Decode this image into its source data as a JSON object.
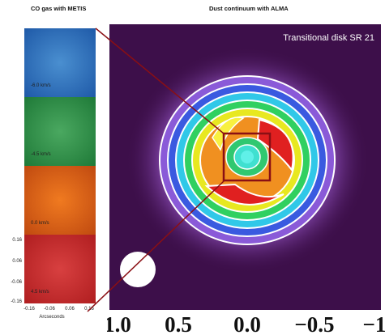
{
  "left_title": "CO gas with METIS",
  "right_title": "Dust continuum with ALMA",
  "image_label": "Transitional disk SR 21",
  "panels": [
    "-6.0 km/s",
    "-4.5 km/s",
    "0.0 km/s",
    "4.5 km/s"
  ],
  "panel_axis": {
    "y_ticks": [
      "0.16",
      "0.06",
      "-0.06",
      "-0.16"
    ],
    "x_ticks": [
      "-0.16",
      "-0.06",
      "0.06",
      "0.16"
    ],
    "x_label": "Arcseconds"
  },
  "image_axis": {
    "x_ticks": [
      "1.0",
      "0.5",
      "0.0",
      "−0.5",
      "−1"
    ]
  }
}
